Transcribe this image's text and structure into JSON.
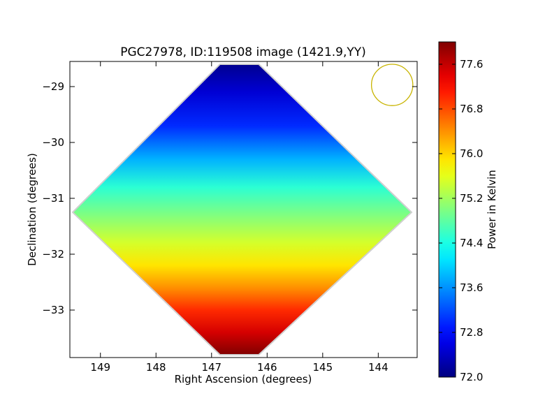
{
  "chart_data": {
    "type": "heatmap",
    "title": "PGC27978, ID:119508 image (1421.9,YY)",
    "xlabel": "Right Ascension (degrees)",
    "ylabel": "Declination (degrees)",
    "xlim": [
      149.55,
      143.3
    ],
    "ylim": [
      -33.85,
      -28.55
    ],
    "x_ticks": [
      149,
      148,
      147,
      146,
      145,
      144
    ],
    "x_tick_labels": [
      "149",
      "148",
      "147",
      "146",
      "145",
      "144"
    ],
    "y_ticks": [
      -29,
      -30,
      -31,
      -32,
      -33
    ],
    "y_tick_labels": [
      "−29",
      "−30",
      "−31",
      "−32",
      "−33"
    ],
    "colorbar": {
      "label": "Power in Kelvin",
      "range": [
        72.0,
        78.0
      ],
      "ticks": [
        72.0,
        72.8,
        73.6,
        74.4,
        75.2,
        76.0,
        76.8,
        77.6
      ],
      "tick_labels": [
        "72.0",
        "72.8",
        "73.6",
        "74.4",
        "75.2",
        "76.0",
        "76.8",
        "77.6"
      ],
      "colormap": "jet"
    },
    "footprint_vertices_deg": [
      [
        146.85,
        -28.6
      ],
      [
        146.15,
        -28.6
      ],
      [
        143.4,
        -31.25
      ],
      [
        146.15,
        -33.8
      ],
      [
        146.85,
        -33.8
      ],
      [
        149.5,
        -31.25
      ]
    ],
    "gradient_profile": [
      {
        "dec": -28.6,
        "value": 72.1
      },
      {
        "dec": -29.1,
        "value": 72.5
      },
      {
        "dec": -29.7,
        "value": 73.0
      },
      {
        "dec": -30.3,
        "value": 73.8
      },
      {
        "dec": -30.8,
        "value": 74.5
      },
      {
        "dec": -31.3,
        "value": 75.0
      },
      {
        "dec": -31.8,
        "value": 75.5
      },
      {
        "dec": -32.2,
        "value": 75.9
      },
      {
        "dec": -32.6,
        "value": 76.4
      },
      {
        "dec": -33.0,
        "value": 77.0
      },
      {
        "dec": -33.4,
        "value": 77.5
      },
      {
        "dec": -33.8,
        "value": 78.0
      }
    ],
    "beam_marker": {
      "ra": 143.75,
      "dec": -28.97,
      "radius_deg": 0.37,
      "color": "#c8b400"
    }
  }
}
